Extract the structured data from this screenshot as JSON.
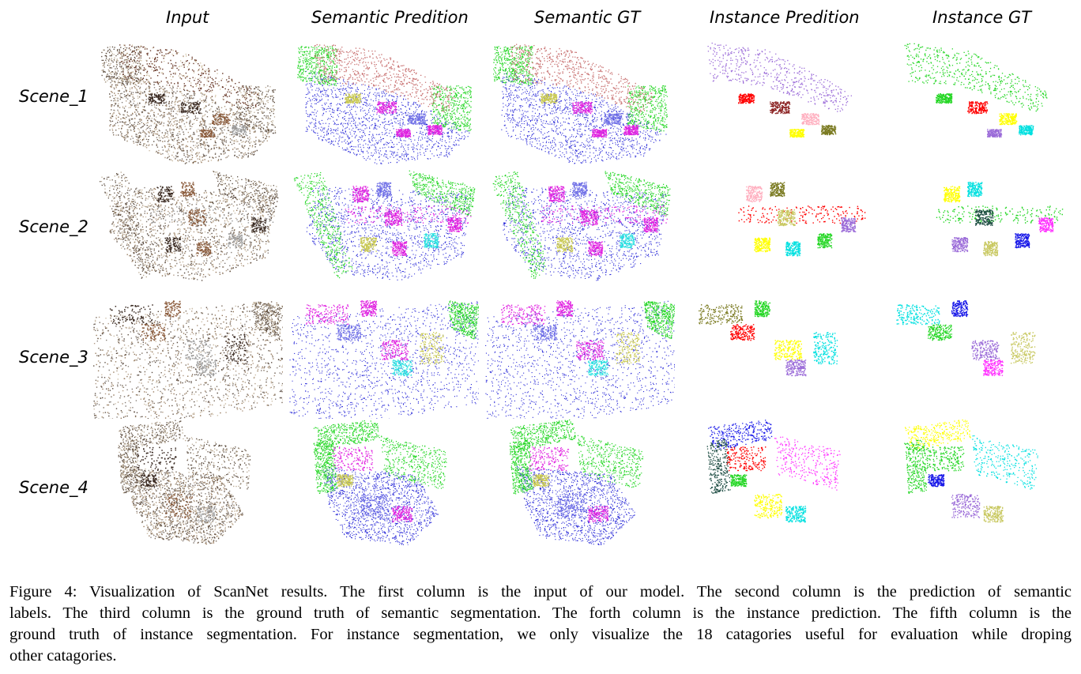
{
  "figure": {
    "column_headers": [
      "Input",
      "Semantic Predition",
      "Semantic GT",
      "Instance Predition",
      "Instance GT"
    ],
    "row_labels": [
      "Scene_1",
      "Scene_2",
      "Scene_3",
      "Scene_4"
    ],
    "panel_types": [
      "input-rgb",
      "semantic-pred",
      "semantic-gt",
      "instance-pred",
      "instance-gt"
    ],
    "semantic_colors": {
      "floor": "#2a2ad8",
      "wall": "#22d622",
      "bookshelf": "#c87070",
      "chair": "#e020e0",
      "table": "#6e6ee6",
      "cabinet": "#28e0e0",
      "sofa": "#c8c850"
    },
    "instance_palette": [
      "#ff0000",
      "#ffff00",
      "#00e0e0",
      "#22d622",
      "#9a6ad8",
      "#c8c860",
      "#1818e8",
      "#ff30ff",
      "#1a4a40",
      "#8a2020",
      "#ffb0c0",
      "#7a7a20"
    ]
  },
  "caption": {
    "lines": [
      "Figure 4: Visualization of ScanNet results. The first column is the input of our model. The second column is the prediction of semantic",
      "labels. The third column is the ground truth of semantic segmentation. The forth column is the instance prediction. The fifth column is the",
      "ground truth of instance segmentation. For instance segmentation, we only visualize the 18 catagories useful for evaluation while droping",
      "other catagories."
    ]
  }
}
